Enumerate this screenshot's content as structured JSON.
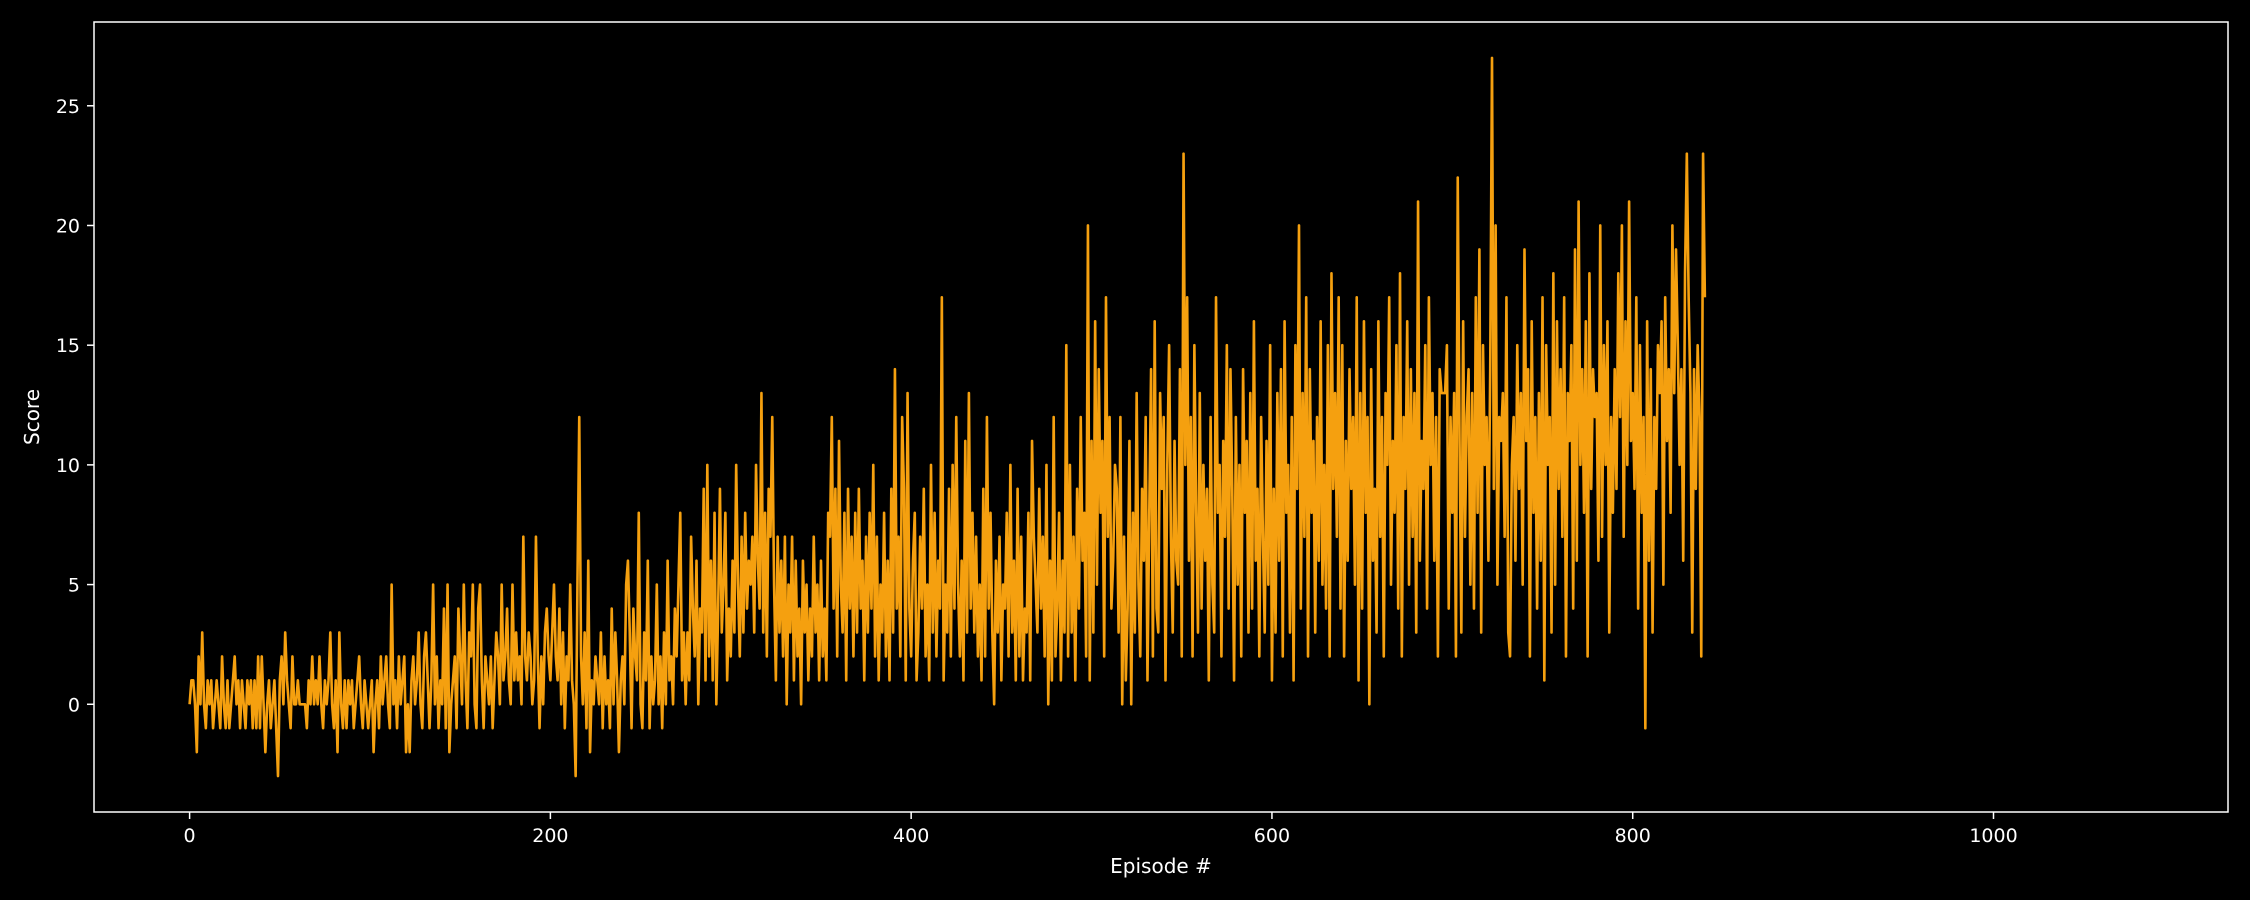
{
  "chart_data": {
    "type": "line",
    "title": "",
    "xlabel": "Episode #",
    "ylabel": "Score",
    "xlim": [
      -53,
      1130
    ],
    "ylim": [
      -4.5,
      28.5
    ],
    "xticks": [
      0,
      200,
      400,
      600,
      800,
      1000
    ],
    "yticks": [
      0,
      5,
      10,
      15,
      20,
      25
    ],
    "grid": false,
    "legend": "none",
    "colors": {
      "background": "#000000",
      "axes": "#ffffff",
      "text": "#ffffff",
      "line": "#f5a00f"
    },
    "series": [
      {
        "values": [
          0,
          1,
          1,
          0,
          -2,
          2,
          0,
          3,
          0,
          -1,
          1,
          0,
          1,
          -1,
          0,
          1,
          0,
          -1,
          2,
          0,
          -1,
          1,
          -1,
          0,
          1,
          2,
          0,
          1,
          -1,
          1,
          0,
          -1,
          1,
          0,
          1,
          -1,
          1,
          -1,
          2,
          -1,
          2,
          0,
          -2,
          0,
          1,
          -1,
          0,
          1,
          -1,
          -3,
          1,
          2,
          0,
          3,
          1,
          0,
          -1,
          2,
          0,
          0,
          1,
          0,
          0,
          0,
          0,
          -1,
          1,
          0,
          2,
          0,
          1,
          0,
          2,
          0,
          -1,
          1,
          0,
          1,
          3,
          0,
          -1,
          1,
          -2,
          3,
          0,
          -1,
          1,
          -1,
          1,
          0,
          1,
          -1,
          0,
          1,
          2,
          0,
          -1,
          1,
          0,
          -1,
          0,
          1,
          -2,
          0,
          1,
          -1,
          2,
          0,
          1,
          2,
          0,
          -1,
          5,
          0,
          1,
          -1,
          2,
          0,
          1,
          2,
          -2,
          0,
          -2,
          1,
          2,
          0,
          1,
          3,
          0,
          -1,
          2,
          3,
          1,
          -1,
          1,
          5,
          0,
          2,
          -1,
          1,
          0,
          4,
          -1,
          5,
          -2,
          0,
          1,
          2,
          -1,
          4,
          2,
          0,
          5,
          1,
          -1,
          3,
          2,
          5,
          0,
          -1,
          4,
          5,
          1,
          -1,
          2,
          1,
          0,
          2,
          -1,
          1,
          3,
          2,
          0,
          5,
          1,
          2,
          4,
          1,
          0,
          5,
          1,
          3,
          1,
          2,
          0,
          7,
          2,
          1,
          3,
          2,
          0,
          1,
          7,
          2,
          -1,
          2,
          0,
          3,
          4,
          2,
          1,
          3,
          5,
          2,
          1,
          4,
          0,
          3,
          -1,
          2,
          1,
          5,
          1,
          0,
          -3,
          5,
          12,
          2,
          0,
          3,
          -1,
          6,
          -2,
          1,
          0,
          2,
          1,
          0,
          3,
          -1,
          2,
          0,
          1,
          -1,
          4,
          0,
          3,
          1,
          -2,
          1,
          2,
          0,
          5,
          6,
          3,
          -1,
          4,
          2,
          1,
          8,
          0,
          -1,
          3,
          1,
          6,
          -1,
          2,
          0,
          1,
          5,
          0,
          2,
          -1,
          3,
          0,
          6,
          1,
          2,
          0,
          4,
          2,
          5,
          8,
          1,
          3,
          0,
          3,
          1,
          7,
          4,
          2,
          6,
          0,
          4,
          3,
          9,
          1,
          10,
          2,
          6,
          1,
          8,
          0,
          4,
          9,
          3,
          5,
          8,
          1,
          4,
          2,
          6,
          3,
          10,
          5,
          2,
          7,
          3,
          8,
          4,
          6,
          5,
          7,
          3,
          10,
          6,
          4,
          13,
          3,
          8,
          2,
          9,
          7,
          12,
          5,
          1,
          7,
          3,
          6,
          2,
          7,
          0,
          5,
          3,
          7,
          1,
          6,
          2,
          4,
          0,
          6,
          3,
          5,
          1,
          4,
          2,
          7,
          3,
          5,
          1,
          6,
          2,
          4,
          1,
          8,
          7,
          12,
          4,
          9,
          2,
          11,
          5,
          3,
          8,
          1,
          9,
          4,
          7,
          2,
          8,
          3,
          9,
          4,
          6,
          1,
          7,
          3,
          8,
          4,
          10,
          2,
          7,
          1,
          5,
          3,
          8,
          2,
          6,
          1,
          9,
          3,
          14,
          4,
          7,
          2,
          12,
          9,
          1,
          13,
          4,
          2,
          6,
          8,
          1,
          3,
          7,
          4,
          9,
          2,
          5,
          1,
          10,
          3,
          8,
          2,
          6,
          4,
          17,
          1,
          5,
          3,
          9,
          2,
          10,
          4,
          12,
          5,
          2,
          6,
          1,
          11,
          3,
          13,
          4,
          8,
          3,
          7,
          2,
          5,
          1,
          9,
          2,
          12,
          4,
          8,
          3,
          0,
          6,
          3,
          7,
          1,
          5,
          4,
          8,
          2,
          10,
          3,
          6,
          1,
          9,
          2,
          7,
          1,
          4,
          3,
          8,
          1,
          11,
          7,
          5,
          3,
          9,
          4,
          7,
          2,
          10,
          0,
          6,
          1,
          12,
          2,
          4,
          8,
          1,
          6,
          3,
          15,
          2,
          10,
          3,
          7,
          1,
          9,
          4,
          12,
          6,
          8,
          2,
          20,
          1,
          11,
          3,
          16,
          5,
          14,
          8,
          11,
          2,
          17,
          7,
          12,
          4,
          6,
          10,
          9,
          3,
          12,
          0,
          7,
          1,
          4,
          11,
          0,
          8,
          3,
          13,
          5,
          2,
          9,
          6,
          12,
          1,
          8,
          14,
          2,
          16,
          4,
          3,
          13,
          9,
          12,
          1,
          10,
          15,
          7,
          3,
          11,
          6,
          5,
          14,
          2,
          23,
          10,
          17,
          6,
          12,
          2,
          15,
          8,
          3,
          13,
          4,
          10,
          6,
          9,
          1,
          12,
          5,
          3,
          17,
          8,
          10,
          2,
          11,
          7,
          15,
          4,
          14,
          9,
          1,
          12,
          5,
          10,
          2,
          14,
          8,
          11,
          3,
          13,
          4,
          16,
          6,
          9,
          2,
          12,
          7,
          3,
          11,
          5,
          15,
          1,
          9,
          3,
          13,
          6,
          14,
          2,
          16,
          8,
          10,
          3,
          12,
          1,
          15,
          9,
          20,
          4,
          13,
          7,
          17,
          2,
          14,
          8,
          11,
          3,
          12,
          6,
          16,
          5,
          10,
          4,
          15,
          2,
          18,
          9,
          13,
          7,
          17,
          4,
          15,
          2,
          11,
          6,
          14,
          9,
          12,
          5,
          17,
          1,
          13,
          4,
          16,
          8,
          12,
          0,
          14,
          6,
          9,
          3,
          16,
          7,
          12,
          2,
          13,
          10,
          17,
          5,
          11,
          8,
          15,
          4,
          18,
          2,
          12,
          9,
          16,
          5,
          14,
          7,
          13,
          3,
          21,
          6,
          11,
          9,
          15,
          4,
          17,
          10,
          13,
          6,
          12,
          2,
          14,
          13,
          13,
          13,
          15,
          4,
          12,
          8,
          13,
          2,
          22,
          11,
          3,
          16,
          7,
          12,
          14,
          5,
          13,
          4,
          17,
          8,
          19,
          3,
          15,
          10,
          12,
          6,
          14,
          27,
          9,
          20,
          5,
          12,
          11,
          13,
          7,
          17,
          3,
          2,
          10,
          12,
          6,
          15,
          9,
          13,
          5,
          19,
          11,
          14,
          2,
          16,
          8,
          12,
          4,
          13,
          6,
          17,
          1,
          15,
          10,
          12,
          3,
          18,
          5,
          16,
          9,
          14,
          7,
          17,
          2,
          13,
          11,
          15,
          4,
          19,
          6,
          21,
          10,
          14,
          8,
          16,
          2,
          18,
          9,
          14,
          12,
          13,
          6,
          20,
          7,
          15,
          10,
          16,
          3,
          12,
          8,
          14,
          9,
          18,
          12,
          20,
          7,
          16,
          10,
          21,
          11,
          13,
          9,
          17,
          4,
          15,
          8,
          12,
          -1,
          16,
          6,
          14,
          3,
          12,
          9,
          15,
          13,
          16,
          5,
          17,
          11,
          14,
          8,
          20,
          13,
          19,
          15,
          10,
          14,
          6,
          18,
          23,
          17,
          13,
          3,
          14,
          9,
          15,
          12,
          2,
          23,
          17
        ]
      }
    ]
  }
}
